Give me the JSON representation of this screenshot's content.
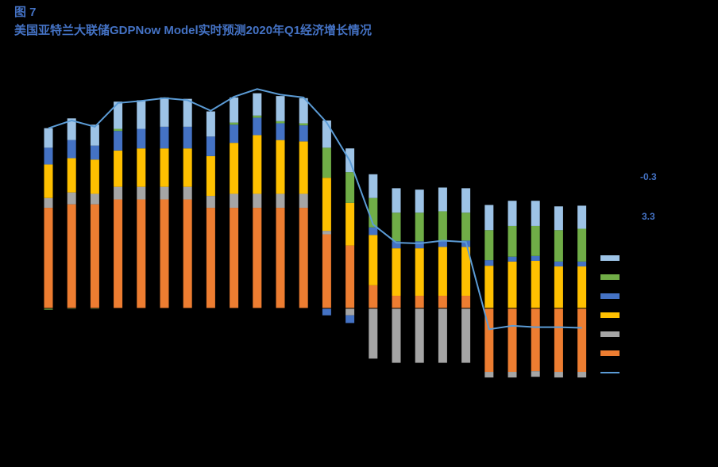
{
  "chart_data": {
    "type": "stacked-bar-line",
    "title": "图 7",
    "subtitle": "美国亚特兰大联储GDPNow Model实时预测2020年Q1经济增长情况",
    "annotations": [
      "-0.3",
      "3.3"
    ],
    "categories": [
      null,
      null,
      null,
      null,
      null,
      null,
      null,
      null,
      null,
      null,
      null,
      null,
      null,
      null,
      null,
      null,
      null,
      null,
      null,
      null,
      null,
      null,
      null,
      null
    ],
    "ylim": [
      -1.5,
      3.7
    ],
    "series": [
      {
        "color": "#ed7d31",
        "values": [
          1.44,
          1.49,
          1.49,
          1.56,
          1.56,
          1.56,
          1.56,
          1.44,
          1.44,
          1.44,
          1.44,
          1.44,
          1.06,
          0.9,
          0.33,
          0.18,
          0.18,
          0.18,
          0.18,
          -0.91,
          -0.91,
          -0.9,
          -0.91,
          -0.91
        ]
      },
      {
        "color": "#a5a5a5",
        "values": [
          0.14,
          0.17,
          0.15,
          0.18,
          0.18,
          0.18,
          0.18,
          0.17,
          0.2,
          0.2,
          0.2,
          0.2,
          0.05,
          -0.1,
          -0.72,
          -0.78,
          -0.78,
          -0.78,
          -0.78,
          -0.08,
          -0.08,
          -0.08,
          -0.08,
          -0.08
        ]
      },
      {
        "color": "#ffc000",
        "values": [
          0.48,
          0.49,
          0.49,
          0.52,
          0.55,
          0.55,
          0.55,
          0.57,
          0.73,
          0.84,
          0.77,
          0.75,
          0.76,
          0.61,
          0.72,
          0.68,
          0.68,
          0.7,
          0.7,
          0.61,
          0.67,
          0.68,
          0.6,
          0.6
        ]
      },
      {
        "color": "#4472c4",
        "values": [
          0.24,
          0.26,
          0.2,
          0.28,
          0.28,
          0.31,
          0.31,
          0.28,
          0.26,
          0.25,
          0.24,
          0.23,
          -0.1,
          -0.11,
          0.11,
          0.1,
          0.1,
          0.09,
          0.09,
          0.08,
          0.07,
          0.07,
          0.07,
          0.07
        ]
      },
      {
        "color": "#70ad47",
        "values": [
          -0.02,
          -0.01,
          -0.01,
          0.03,
          0,
          0,
          0,
          0,
          0.03,
          0.03,
          0.03,
          0.03,
          0.43,
          0.44,
          0.42,
          0.41,
          0.41,
          0.42,
          0.4,
          0.43,
          0.44,
          0.43,
          0.45,
          0.47
        ]
      },
      {
        "color": "#9dc3e6",
        "values": [
          0.28,
          0.31,
          0.3,
          0.39,
          0.41,
          0.42,
          0.4,
          0.36,
          0.36,
          0.32,
          0.36,
          0.36,
          0.39,
          0.34,
          0.34,
          0.35,
          0.33,
          0.34,
          0.35,
          0.36,
          0.36,
          0.36,
          0.34,
          0.33
        ]
      }
    ],
    "line": {
      "color": "#5b9bd5",
      "values": [
        2.58,
        2.69,
        2.6,
        2.94,
        2.97,
        3.01,
        2.98,
        2.83,
        3.03,
        3.14,
        3.06,
        3.02,
        2.66,
        2.11,
        1.2,
        0.94,
        0.93,
        0.97,
        0.95,
        -0.3,
        -0.25,
        -0.27,
        -0.27,
        -0.28
      ]
    }
  }
}
